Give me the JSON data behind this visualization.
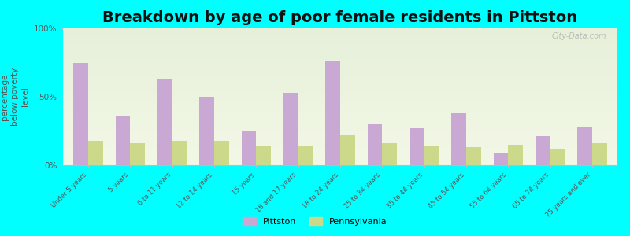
{
  "title": "Breakdown by age of poor female residents in Pittston",
  "ylabel": "percentage\nbelow poverty\nlevel",
  "categories": [
    "Under 5 years",
    "5 years",
    "6 to 11 years",
    "12 to 14 years",
    "15 years",
    "16 and 17 years",
    "18 to 24 years",
    "25 to 34 years",
    "35 to 44 years",
    "45 to 54 years",
    "55 to 64 years",
    "65 to 74 years",
    "75 years and over"
  ],
  "pittston_values": [
    75,
    36,
    63,
    50,
    25,
    53,
    76,
    30,
    27,
    38,
    9,
    21,
    28
  ],
  "pennsylvania_values": [
    18,
    16,
    18,
    18,
    14,
    14,
    22,
    16,
    14,
    13,
    15,
    12,
    16
  ],
  "pittston_color": "#c9a8d4",
  "pennsylvania_color": "#ccd98a",
  "background_color": "#00ffff",
  "ylim": [
    0,
    100
  ],
  "title_fontsize": 14,
  "legend_labels": [
    "Pittston",
    "Pennsylvania"
  ],
  "bar_width": 0.35,
  "watermark": "City-Data.com"
}
